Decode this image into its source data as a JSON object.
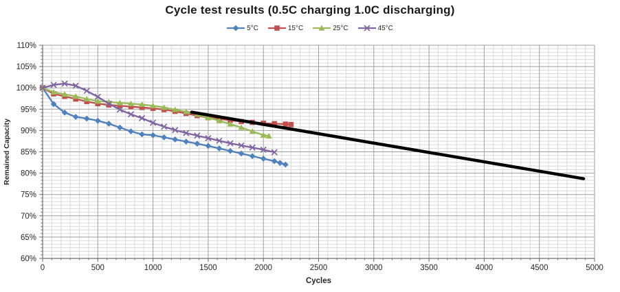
{
  "title": "Cycle test results (0.5C charging 1.0C discharging)",
  "colors": {
    "series_5c": "#4F81BD",
    "series_15c": "#C0504D",
    "series_25c": "#9BBB59",
    "series_45c": "#8064A2",
    "trend": "#000000",
    "grid_minor": "#d9d9d9",
    "grid_major": "#9e9e9e",
    "axis": "#6e6e6e",
    "text": "#262626",
    "background": "#ffffff"
  },
  "chart_data": {
    "type": "line",
    "title": "Cycle test results (0.5C charging 1.0C discharging)",
    "xlabel": "Cycles",
    "ylabel": "Remained Capacity",
    "xlim": [
      0,
      5000
    ],
    "ylim": [
      60,
      110
    ],
    "x_major_unit": 500,
    "x_minor_divisions": 6,
    "y_major_unit": 5,
    "y_minor_divisions": 6,
    "grid": "both-major-and-minor",
    "legend_position": "top-center",
    "x_tick_labels": [
      "0",
      "500",
      "1000",
      "1500",
      "2000",
      "2500",
      "3000",
      "3500",
      "4000",
      "4500",
      "5000"
    ],
    "y_tick_labels": [
      "60%",
      "65%",
      "70%",
      "75%",
      "80%",
      "85%",
      "90%",
      "95%",
      "100%",
      "105%",
      "110%"
    ],
    "series": [
      {
        "name": "5°C",
        "color": "#4F81BD",
        "marker": "diamond",
        "points": [
          [
            0,
            100
          ],
          [
            100,
            96.2
          ],
          [
            200,
            94.2
          ],
          [
            300,
            93.2
          ],
          [
            400,
            92.8
          ],
          [
            500,
            92.3
          ],
          [
            600,
            91.6
          ],
          [
            700,
            90.7
          ],
          [
            800,
            89.8
          ],
          [
            900,
            89.1
          ],
          [
            1000,
            88.9
          ],
          [
            1100,
            88.4
          ],
          [
            1200,
            87.9
          ],
          [
            1300,
            87.4
          ],
          [
            1400,
            86.9
          ],
          [
            1500,
            86.4
          ],
          [
            1600,
            85.8
          ],
          [
            1700,
            85.2
          ],
          [
            1800,
            84.6
          ],
          [
            1900,
            84.0
          ],
          [
            2000,
            83.4
          ],
          [
            2100,
            82.8
          ],
          [
            2150,
            82.4
          ],
          [
            2200,
            82.0
          ]
        ]
      },
      {
        "name": "15°C",
        "color": "#C0504D",
        "marker": "square",
        "points": [
          [
            0,
            100
          ],
          [
            100,
            98.6
          ],
          [
            200,
            98.0
          ],
          [
            300,
            97.4
          ],
          [
            400,
            96.8
          ],
          [
            500,
            96.3
          ],
          [
            600,
            96.0
          ],
          [
            700,
            95.8
          ],
          [
            800,
            95.6
          ],
          [
            900,
            95.4
          ],
          [
            1000,
            95.2
          ],
          [
            1100,
            94.9
          ],
          [
            1200,
            94.5
          ],
          [
            1300,
            94.0
          ],
          [
            1400,
            93.5
          ],
          [
            1500,
            93.0
          ],
          [
            1600,
            92.7
          ],
          [
            1700,
            92.4
          ],
          [
            1800,
            92.1
          ],
          [
            1900,
            91.9
          ],
          [
            2000,
            91.7
          ],
          [
            2100,
            91.6
          ],
          [
            2200,
            91.5
          ],
          [
            2250,
            91.4
          ]
        ]
      },
      {
        "name": "25°C",
        "color": "#9BBB59",
        "marker": "triangle",
        "points": [
          [
            0,
            100
          ],
          [
            100,
            99.0
          ],
          [
            200,
            98.5
          ],
          [
            300,
            98.0
          ],
          [
            400,
            97.4
          ],
          [
            500,
            96.9
          ],
          [
            600,
            96.7
          ],
          [
            700,
            96.5
          ],
          [
            800,
            96.3
          ],
          [
            900,
            96.1
          ],
          [
            1000,
            95.8
          ],
          [
            1100,
            95.4
          ],
          [
            1200,
            94.9
          ],
          [
            1300,
            94.4
          ],
          [
            1400,
            93.8
          ],
          [
            1500,
            93.0
          ],
          [
            1600,
            92.3
          ],
          [
            1700,
            91.5
          ],
          [
            1800,
            90.7
          ],
          [
            1900,
            89.8
          ],
          [
            2000,
            88.9
          ],
          [
            2050,
            88.7
          ]
        ]
      },
      {
        "name": "45°C",
        "color": "#8064A2",
        "marker": "x",
        "points": [
          [
            0,
            100
          ],
          [
            100,
            100.7
          ],
          [
            200,
            101.0
          ],
          [
            300,
            100.5
          ],
          [
            400,
            99.3
          ],
          [
            500,
            97.9
          ],
          [
            600,
            96.3
          ],
          [
            700,
            94.9
          ],
          [
            800,
            93.8
          ],
          [
            900,
            92.9
          ],
          [
            1000,
            91.8
          ],
          [
            1100,
            90.9
          ],
          [
            1200,
            90.1
          ],
          [
            1300,
            89.4
          ],
          [
            1400,
            88.8
          ],
          [
            1500,
            88.2
          ],
          [
            1600,
            87.6
          ],
          [
            1700,
            87.0
          ],
          [
            1800,
            86.5
          ],
          [
            1900,
            86.0
          ],
          [
            2000,
            85.5
          ],
          [
            2100,
            84.9
          ]
        ]
      }
    ],
    "trend_line": {
      "name": "reference-trend",
      "color": "#000000",
      "width": 4.5,
      "points": [
        [
          1350,
          94.3
        ],
        [
          4900,
          78.7
        ]
      ]
    }
  }
}
